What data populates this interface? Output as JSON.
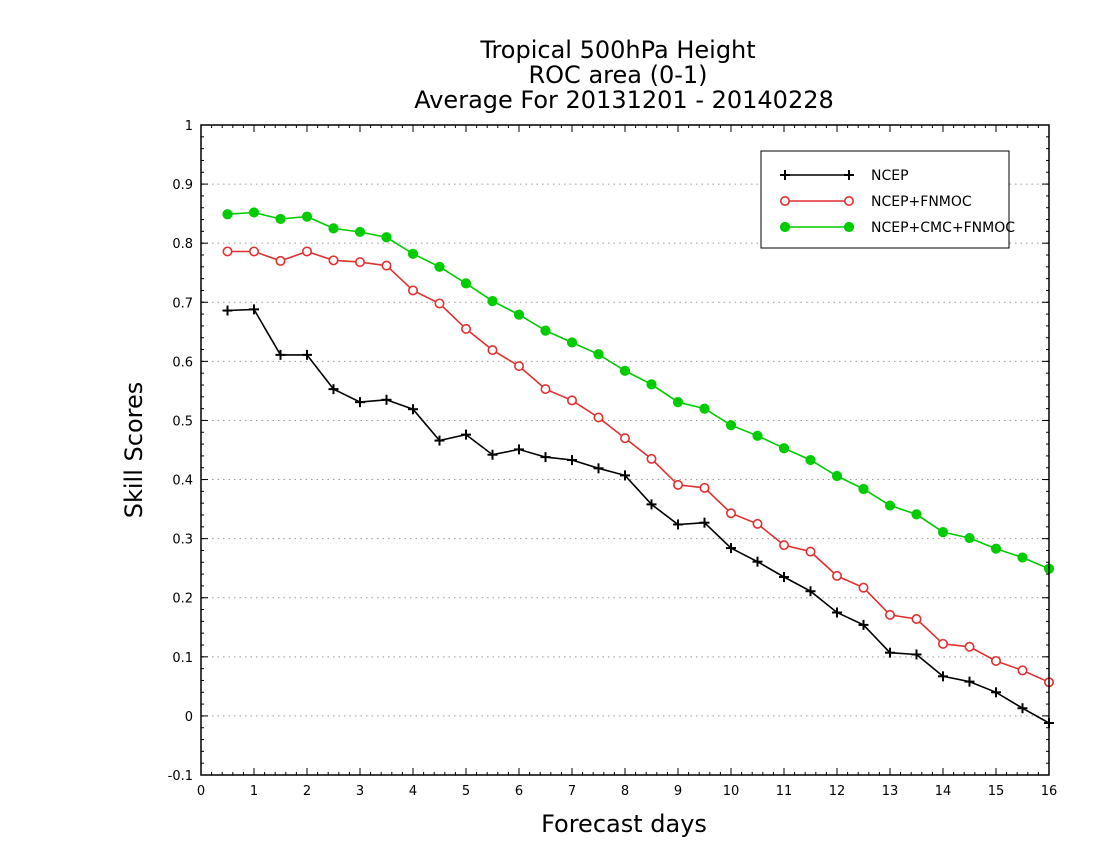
{
  "chart_data": {
    "type": "line",
    "title_lines": [
      "Tropical 500hPa Height",
      "ROC area (0-1)",
      "Average For 20131201 - 20140228"
    ],
    "xlabel": "Forecast days",
    "ylabel": "Skill Scores",
    "xlim": [
      0,
      16
    ],
    "ylim": [
      -0.1,
      1
    ],
    "x_ticks": [
      0,
      1,
      2,
      3,
      4,
      5,
      6,
      7,
      8,
      9,
      10,
      11,
      12,
      13,
      14,
      15,
      16
    ],
    "y_ticks": [
      -0.1,
      0,
      0.1,
      0.2,
      0.3,
      0.4,
      0.5,
      0.6,
      0.7,
      0.8,
      0.9,
      1
    ],
    "y_tick_labels": [
      "-0.1",
      "0",
      "0.1",
      "0.2",
      "0.3",
      "0.4",
      "0.5",
      "0.6",
      "0.7",
      "0.8",
      "0.9",
      "1"
    ],
    "grid": "horizontal dotted",
    "legend_position": "top-right",
    "x": [
      0.5,
      1,
      1.5,
      2,
      2.5,
      3,
      3.5,
      4,
      4.5,
      5,
      5.5,
      6,
      6.5,
      7,
      7.5,
      8,
      8.5,
      9,
      9.5,
      10,
      10.5,
      11,
      11.5,
      12,
      12.5,
      13,
      13.5,
      14,
      14.5,
      15,
      15.5,
      16
    ],
    "series": [
      {
        "name": "NCEP",
        "color": "#000000",
        "marker": "plus",
        "values": [
          0.686,
          0.688,
          0.611,
          0.611,
          0.553,
          0.531,
          0.535,
          0.519,
          0.466,
          0.476,
          0.442,
          0.451,
          0.438,
          0.433,
          0.419,
          0.407,
          0.358,
          0.324,
          0.327,
          0.284,
          0.261,
          0.235,
          0.211,
          0.175,
          0.154,
          0.107,
          0.104,
          0.067,
          0.058,
          0.04,
          0.013,
          -0.012
        ]
      },
      {
        "name": "NCEP+FNMOC",
        "color": "#e03030",
        "marker": "open-circle",
        "values": [
          0.786,
          0.786,
          0.77,
          0.786,
          0.771,
          0.768,
          0.762,
          0.72,
          0.698,
          0.655,
          0.619,
          0.592,
          0.553,
          0.534,
          0.505,
          0.47,
          0.435,
          0.391,
          0.386,
          0.343,
          0.325,
          0.289,
          0.278,
          0.237,
          0.217,
          0.171,
          0.164,
          0.122,
          0.117,
          0.093,
          0.077,
          0.057
        ]
      },
      {
        "name": "NCEP+CMC+FNMOC",
        "color": "#00cc00",
        "marker": "filled-circle",
        "values": [
          0.849,
          0.852,
          0.841,
          0.845,
          0.825,
          0.819,
          0.81,
          0.782,
          0.76,
          0.732,
          0.702,
          0.679,
          0.652,
          0.632,
          0.612,
          0.584,
          0.561,
          0.531,
          0.52,
          0.492,
          0.474,
          0.453,
          0.433,
          0.406,
          0.384,
          0.356,
          0.341,
          0.311,
          0.301,
          0.283,
          0.268,
          0.249
        ]
      }
    ]
  }
}
